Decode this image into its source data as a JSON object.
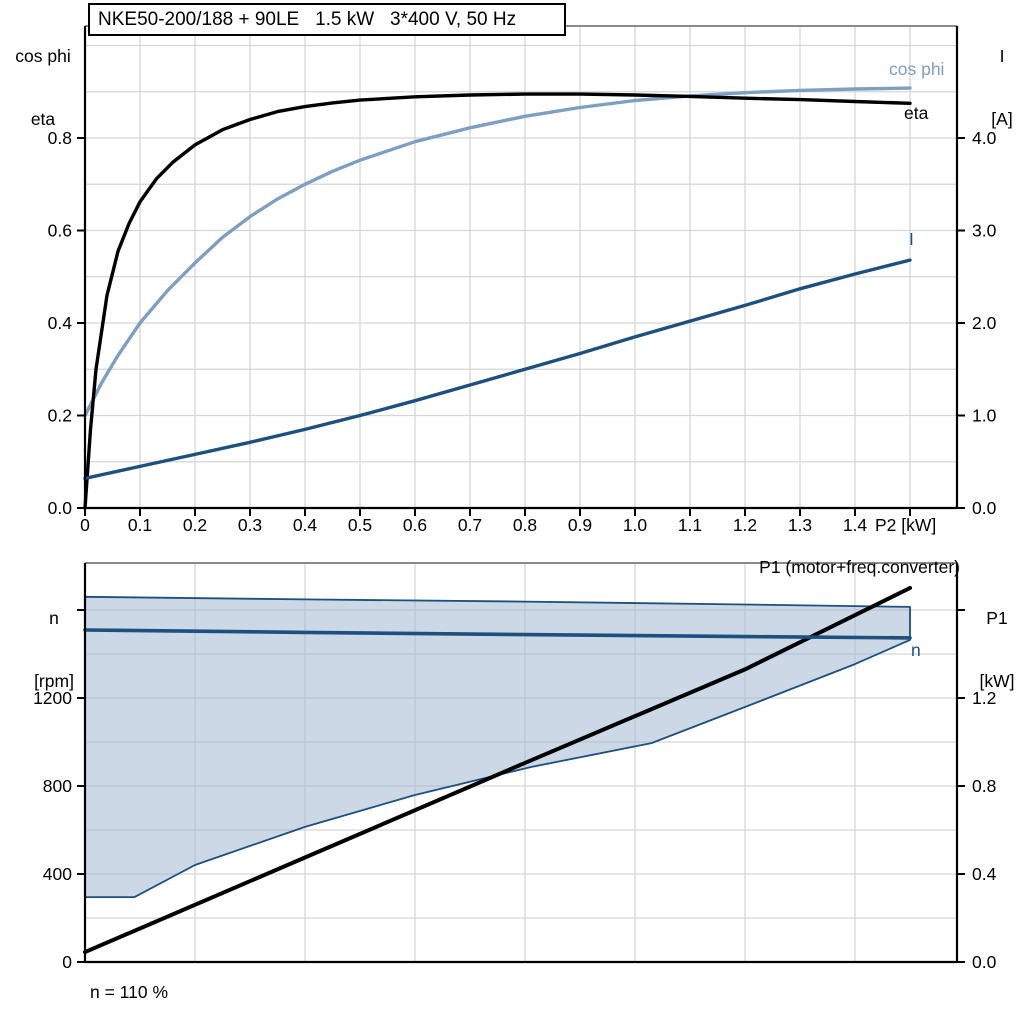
{
  "colors": {
    "eta": "#000000",
    "cos_phi": "#7e9fc1",
    "current": "#1d4f7f",
    "n_curve": "#1d4f7f",
    "p1_line": "#000000",
    "envelope_fill": "rgba(163,184,210,0.55)",
    "envelope_stroke": "#1d4f7f",
    "grid": "#d5d5d5",
    "axis": "#000000",
    "frame": "#8a8a8a"
  },
  "chart_data": [
    {
      "type": "line",
      "title": "NKE50-200/188 + 90LE   1.5 kW   3*400 V, 50 Hz",
      "x_axis": {
        "label": "P2 [kW]",
        "range": [
          0,
          1.586
        ],
        "grid_step": 0.1,
        "tick_values": [
          0,
          0.1,
          0.2,
          0.3,
          0.4,
          0.5,
          0.6,
          0.7,
          0.8,
          0.9,
          1.0,
          1.1,
          1.2,
          1.3,
          1.4,
          1.5
        ],
        "tick_labels": [
          "0",
          "0.1",
          "0.2",
          "0.3",
          "0.4",
          "0.5",
          "0.6",
          "0.7",
          "0.8",
          "0.9",
          "1.0",
          "1.1",
          "1.2",
          "1.3",
          "1.4",
          ""
        ]
      },
      "left_axis": {
        "label_lines": [
          "cos phi",
          "eta"
        ],
        "range": [
          0,
          1.042
        ],
        "grid_step": 0.1,
        "tick_values": [
          0,
          0.2,
          0.4,
          0.6,
          0.8
        ],
        "tick_labels": [
          "0.0",
          "0.2",
          "0.4",
          "0.6",
          "0.8"
        ]
      },
      "right_axis": {
        "label_lines": [
          "I",
          "[A]"
        ],
        "range": [
          0,
          5.21
        ],
        "tick_values": [
          0,
          1,
          2,
          3,
          4
        ],
        "tick_labels": [
          "0.0",
          "1.0",
          "2.0",
          "3.0",
          "4.0"
        ]
      },
      "series": [
        {
          "name": "eta",
          "label": "eta",
          "axis": "left",
          "color_key": "eta",
          "points": [
            [
              0,
              0
            ],
            [
              0.01,
              0.17
            ],
            [
              0.02,
              0.3
            ],
            [
              0.04,
              0.46
            ],
            [
              0.06,
              0.555
            ],
            [
              0.08,
              0.615
            ],
            [
              0.1,
              0.662
            ],
            [
              0.13,
              0.712
            ],
            [
              0.16,
              0.748
            ],
            [
              0.2,
              0.785
            ],
            [
              0.25,
              0.818
            ],
            [
              0.3,
              0.84
            ],
            [
              0.35,
              0.857
            ],
            [
              0.4,
              0.868
            ],
            [
              0.45,
              0.876
            ],
            [
              0.5,
              0.882
            ],
            [
              0.6,
              0.889
            ],
            [
              0.7,
              0.893
            ],
            [
              0.8,
              0.895
            ],
            [
              0.9,
              0.895
            ],
            [
              1.0,
              0.893
            ],
            [
              1.1,
              0.89
            ],
            [
              1.2,
              0.886
            ],
            [
              1.3,
              0.883
            ],
            [
              1.4,
              0.879
            ],
            [
              1.5,
              0.875
            ]
          ]
        },
        {
          "name": "cos phi",
          "label": "cos phi",
          "axis": "left",
          "color_key": "cos_phi",
          "points": [
            [
              0,
              0.2
            ],
            [
              0.03,
              0.27
            ],
            [
              0.06,
              0.33
            ],
            [
              0.1,
              0.4
            ],
            [
              0.15,
              0.47
            ],
            [
              0.2,
              0.53
            ],
            [
              0.25,
              0.585
            ],
            [
              0.3,
              0.63
            ],
            [
              0.35,
              0.668
            ],
            [
              0.4,
              0.7
            ],
            [
              0.45,
              0.728
            ],
            [
              0.5,
              0.752
            ],
            [
              0.6,
              0.792
            ],
            [
              0.7,
              0.822
            ],
            [
              0.8,
              0.847
            ],
            [
              0.9,
              0.866
            ],
            [
              1.0,
              0.881
            ],
            [
              1.1,
              0.891
            ],
            [
              1.2,
              0.898
            ],
            [
              1.3,
              0.903
            ],
            [
              1.4,
              0.906
            ],
            [
              1.5,
              0.908
            ]
          ]
        },
        {
          "name": "I",
          "label": "I",
          "axis": "right",
          "color_key": "current",
          "points": [
            [
              0,
              0.32
            ],
            [
              0.1,
              0.45
            ],
            [
              0.2,
              0.58
            ],
            [
              0.3,
              0.71
            ],
            [
              0.4,
              0.85
            ],
            [
              0.5,
              1.0
            ],
            [
              0.6,
              1.16
            ],
            [
              0.7,
              1.33
            ],
            [
              0.8,
              1.5
            ],
            [
              0.9,
              1.67
            ],
            [
              1.0,
              1.85
            ],
            [
              1.1,
              2.02
            ],
            [
              1.2,
              2.19
            ],
            [
              1.3,
              2.37
            ],
            [
              1.4,
              2.53
            ],
            [
              1.5,
              2.68
            ]
          ]
        }
      ]
    },
    {
      "type": "line+area",
      "x_axis": {
        "label": "",
        "range": [
          0,
          1.586
        ],
        "grid_step": 0.2
      },
      "left_axis": {
        "label_lines": [
          "n",
          "[rpm]"
        ],
        "range": [
          0,
          1814
        ],
        "grid_step": 200,
        "tick_values": [
          0,
          400,
          800,
          1200,
          1600
        ],
        "tick_labels": [
          "0",
          "400",
          "800",
          "1200",
          ""
        ]
      },
      "right_axis": {
        "label_lines": [
          "P1",
          "[kW]"
        ],
        "range": [
          0,
          1.814
        ],
        "tick_values": [
          0,
          0.4,
          0.8,
          1.2,
          1.6
        ],
        "tick_labels": [
          "0.0",
          "0.4",
          "0.8",
          "1.2",
          ""
        ]
      },
      "area": {
        "name": "speed-range-envelope",
        "upper_rpm": [
          [
            0,
            1660
          ],
          [
            0.4,
            1648
          ],
          [
            0.8,
            1638
          ],
          [
            1.2,
            1625
          ],
          [
            1.5,
            1614
          ]
        ],
        "lower_rpm": [
          [
            0,
            295
          ],
          [
            0.09,
            295
          ],
          [
            0.2,
            441
          ],
          [
            0.4,
            614
          ],
          [
            0.6,
            759
          ],
          [
            0.81,
            886
          ],
          [
            1.03,
            995
          ],
          [
            1.2,
            1159
          ],
          [
            1.4,
            1354
          ],
          [
            1.5,
            1464
          ]
        ]
      },
      "series": [
        {
          "name": "n",
          "label": "n",
          "axis": "left",
          "color_key": "n_curve",
          "points": [
            [
              0,
              1509
            ],
            [
              0.4,
              1498
            ],
            [
              0.8,
              1488
            ],
            [
              1.2,
              1479
            ],
            [
              1.5,
              1473
            ]
          ]
        },
        {
          "name": "P1 (motor+freq.converter)",
          "label": "P1 (motor+freq.converter)",
          "axis": "right",
          "color_key": "p1_line",
          "points": [
            [
              0,
              0.045
            ],
            [
              0.4,
              0.475
            ],
            [
              0.8,
              0.905
            ],
            [
              1.2,
              1.33
            ],
            [
              1.5,
              1.7
            ]
          ]
        }
      ],
      "annotation": "n = 110 %"
    }
  ]
}
